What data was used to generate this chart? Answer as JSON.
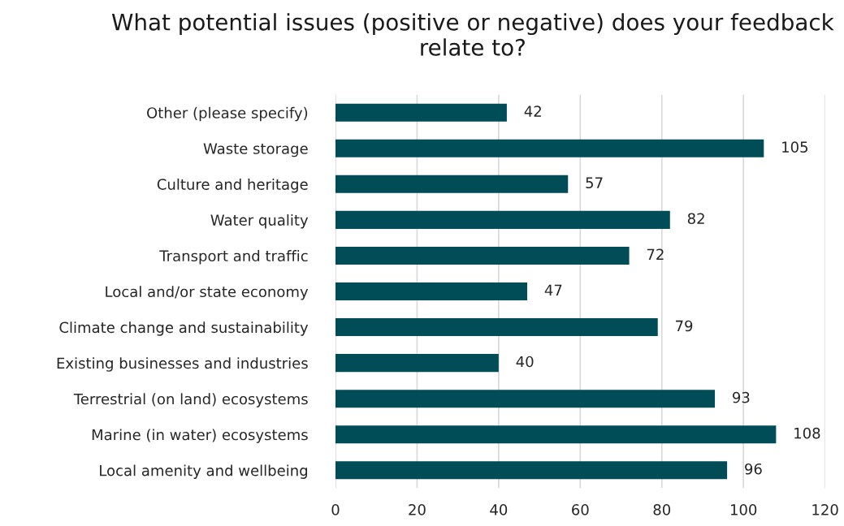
{
  "chart_data": {
    "type": "bar",
    "orientation": "horizontal",
    "title": "What potential issues (positive or negative) does your feedback relate to?",
    "categories": [
      "Other (please specify)",
      "Waste storage",
      "Culture and heritage",
      "Water quality",
      "Transport and traffic",
      "Local and/or state economy",
      "Climate change and sustainability",
      "Existing businesses and industries",
      "Terrestrial (on land) ecosystems",
      "Marine (in water) ecosystems",
      "Local amenity and wellbeing"
    ],
    "values": [
      42,
      105,
      57,
      82,
      72,
      47,
      79,
      40,
      93,
      108,
      96
    ],
    "color": "#004d57",
    "xlim": [
      0,
      120
    ],
    "xticks": [
      0,
      20,
      40,
      60,
      80,
      100,
      120
    ],
    "grid": "x",
    "data_labels": true
  }
}
